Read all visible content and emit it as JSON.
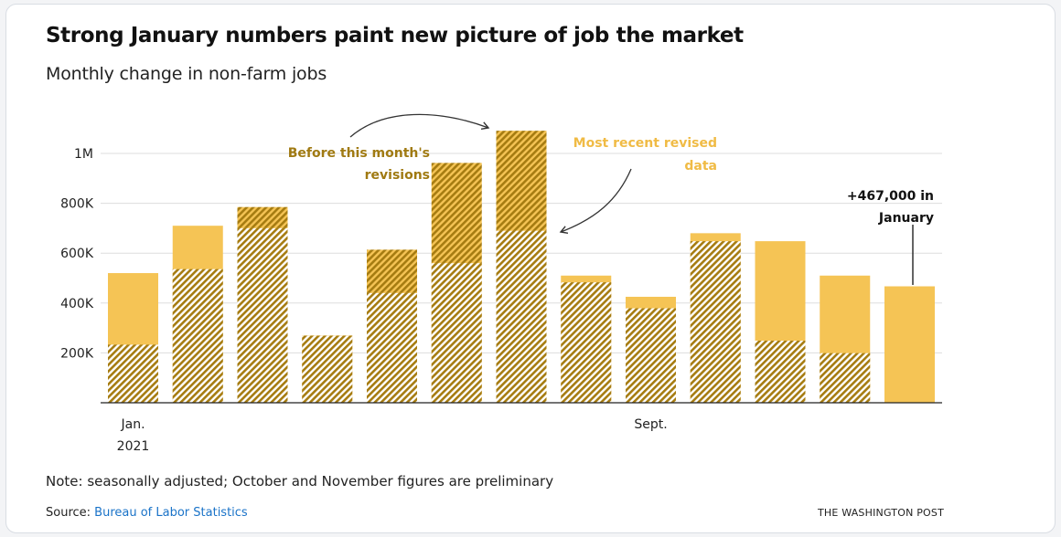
{
  "header": {
    "title": "Strong January numbers paint new picture of job the market",
    "subtitle": "Monthly change in non-farm jobs"
  },
  "footer": {
    "note": "Note: seasonally adjusted; October and November figures are preliminary",
    "source_prefix": "Source: ",
    "source_link": "Bureau of Labor Statistics",
    "brand": "THE WASHINGTON POST"
  },
  "annotations": {
    "before_line1": "Before this month's",
    "before_line2": "revisions",
    "recent_line1": "Most recent revised",
    "recent_line2": "data",
    "jan_line1": "+467,000 in",
    "jan_line2": "January"
  },
  "colors": {
    "revised": "#f5c455",
    "original_hatch": "#a67c11",
    "axis": "#222222",
    "grid": "#dddddd",
    "before_label": "#a07a12",
    "recent_label": "#f0bb45"
  },
  "chart_data": {
    "type": "bar",
    "ylim": [
      0,
      1100000
    ],
    "y_ticks": [
      200000,
      400000,
      600000,
      800000,
      1000000
    ],
    "y_tick_labels": [
      "200K",
      "400K",
      "600K",
      "800K",
      "1M"
    ],
    "x_tick_labels": [
      {
        "index": 0,
        "line1": "Jan.",
        "line2": "2021"
      },
      {
        "index": 8,
        "line1": "Sept.",
        "line2": ""
      }
    ],
    "series": [
      {
        "name": "Most recent revised data",
        "values": [
          520000,
          710000,
          700000,
          270000,
          440000,
          560000,
          690000,
          510000,
          425000,
          680000,
          648000,
          510000,
          467000
        ]
      },
      {
        "name": "Before this month's revisions",
        "values": [
          233000,
          536000,
          785000,
          269000,
          614000,
          962000,
          1091000,
          483000,
          379000,
          648000,
          249000,
          199000,
          null
        ]
      }
    ]
  }
}
